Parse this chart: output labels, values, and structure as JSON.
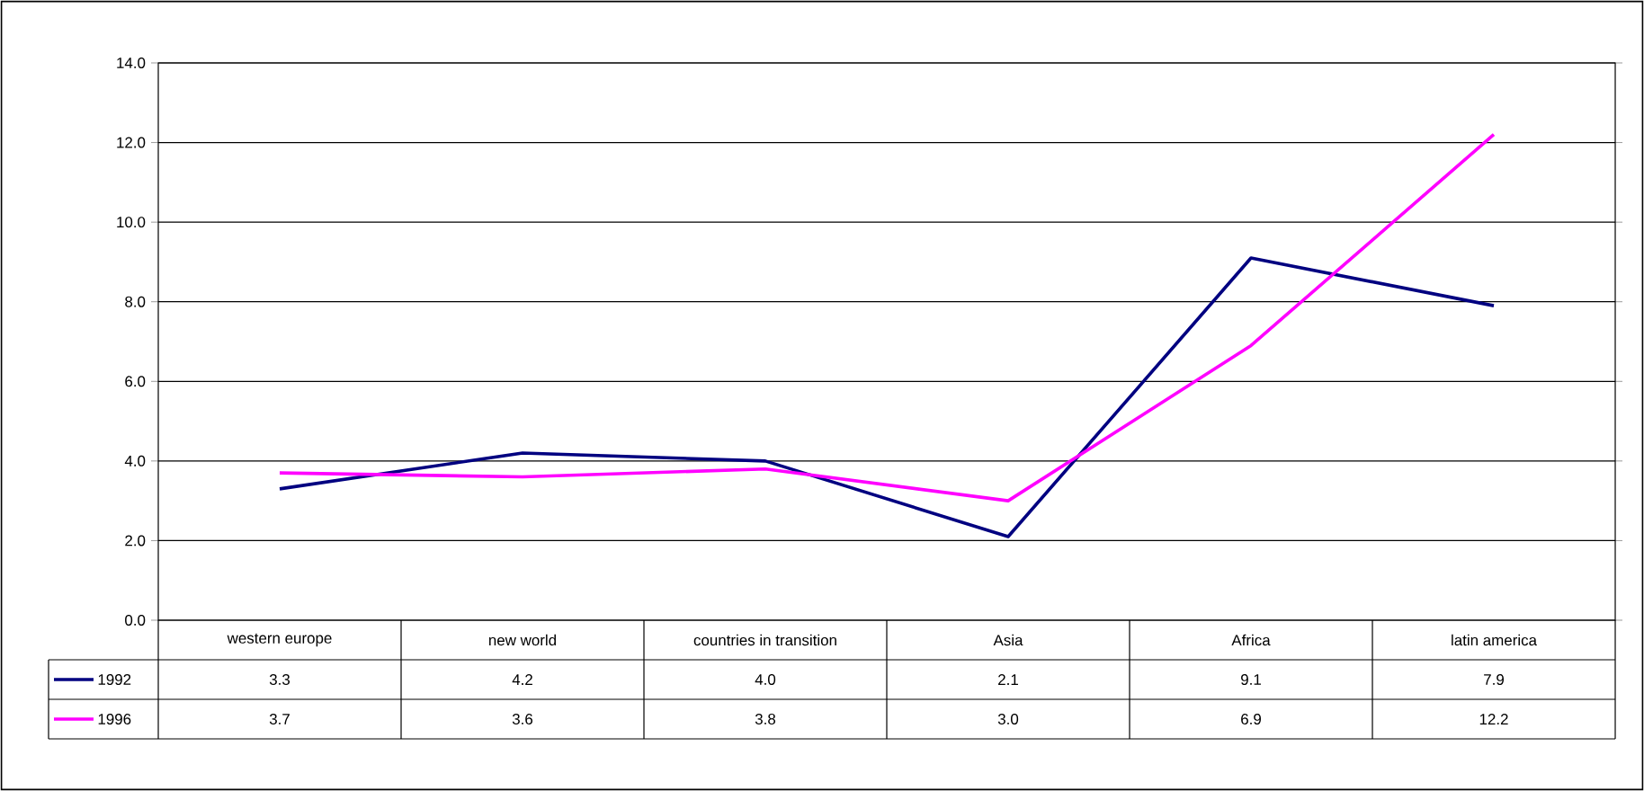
{
  "chart_data": {
    "type": "line",
    "categories": [
      "western europe",
      "new world",
      "countries in transition",
      "Asia",
      "Africa",
      "latin america"
    ],
    "series": [
      {
        "name": "1992",
        "color": "#000080",
        "values": [
          3.3,
          4.2,
          4.0,
          2.1,
          9.1,
          7.9
        ],
        "value_labels": [
          "3.3",
          "4.2",
          "4.0",
          "2.1",
          "9.1",
          "7.9"
        ]
      },
      {
        "name": "1996",
        "color": "#ff00ff",
        "values": [
          3.7,
          3.6,
          3.8,
          3.0,
          6.9,
          12.2
        ],
        "value_labels": [
          "3.7",
          "3.6",
          "3.8",
          "3.0",
          "6.9",
          "12.2"
        ]
      }
    ],
    "ylim": [
      0,
      14
    ],
    "yticks": [
      {
        "value": 0,
        "label": "0.0"
      },
      {
        "value": 2,
        "label": "2.0"
      },
      {
        "value": 4,
        "label": "4.0"
      },
      {
        "value": 6,
        "label": "6.0"
      },
      {
        "value": 8,
        "label": "8.0"
      },
      {
        "value": 10,
        "label": "10.0"
      },
      {
        "value": 12,
        "label": "12.0"
      },
      {
        "value": 14,
        "label": "14.0"
      }
    ],
    "grid": "y",
    "legend": "bottom",
    "marker": "none",
    "line_style": "solid"
  }
}
